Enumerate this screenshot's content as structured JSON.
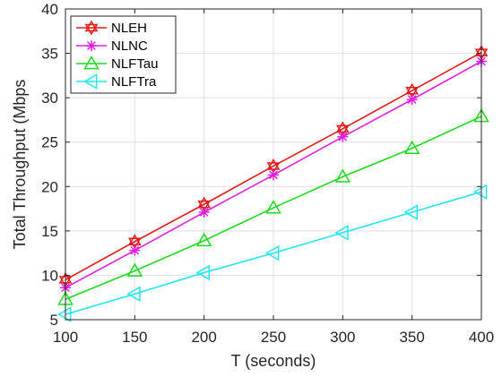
{
  "chart_data": {
    "type": "line",
    "xlabel": "T (seconds)",
    "ylabel": "Total Throughput (Mbps",
    "xlim": [
      100,
      400
    ],
    "ylim": [
      5,
      40
    ],
    "x_ticks": [
      "100",
      "150",
      "200",
      "250",
      "300",
      "350",
      "400"
    ],
    "y_ticks": [
      "5",
      "10",
      "15",
      "20",
      "25",
      "30",
      "35",
      "40"
    ],
    "grid": true,
    "legend_position": "top-left",
    "x": [
      100,
      150,
      200,
      250,
      300,
      350,
      400
    ],
    "series": [
      {
        "name": "NLEH",
        "color": "#e41a1a",
        "marker": "hexagram",
        "values": [
          9.5,
          13.8,
          18.0,
          22.3,
          26.5,
          30.8,
          35.1
        ]
      },
      {
        "name": "NLNC",
        "color": "#e020e0",
        "marker": "asterisk",
        "values": [
          8.6,
          12.8,
          17.1,
          21.3,
          25.6,
          29.8,
          34.1
        ]
      },
      {
        "name": "NLFTau",
        "color": "#1adc1a",
        "marker": "triangle-up",
        "values": [
          7.3,
          10.5,
          13.9,
          17.6,
          21.1,
          24.3,
          27.9
        ]
      },
      {
        "name": "NLFTra",
        "color": "#22e5f0",
        "marker": "triangle-left",
        "values": [
          5.6,
          7.9,
          10.3,
          12.5,
          14.8,
          17.1,
          19.4
        ]
      }
    ]
  }
}
